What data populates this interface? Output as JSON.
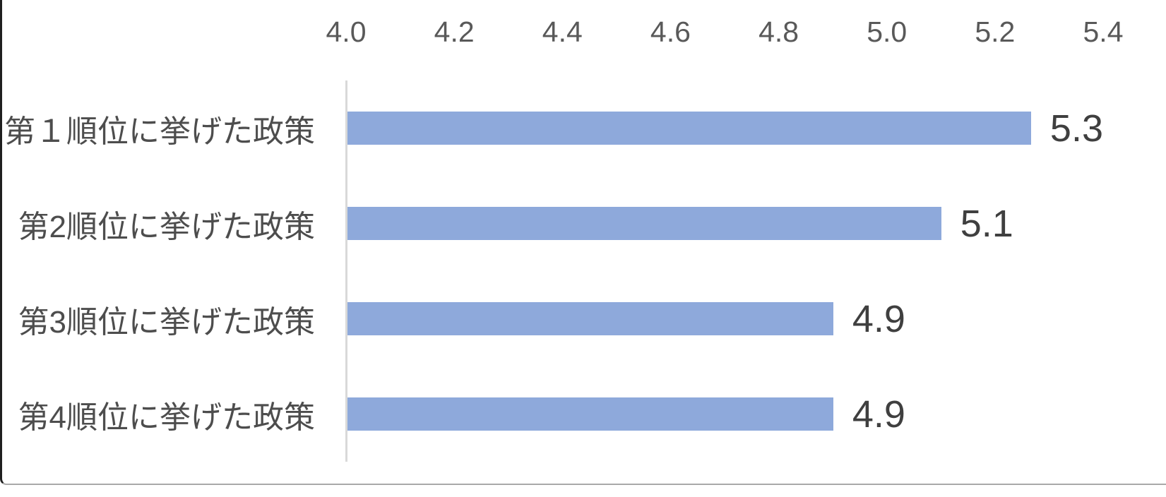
{
  "chart_data": {
    "type": "bar",
    "orientation": "horizontal",
    "title": "",
    "xlabel": "",
    "ylabel": "",
    "categories": [
      "第１順位に挙げた政策",
      "第2順位に挙げた政策",
      "第3順位に挙げた政策",
      "第4順位に挙げた政策"
    ],
    "values": [
      5.3,
      5.1,
      4.9,
      4.9
    ],
    "data_labels": [
      "5.3",
      "5.1",
      "4.9",
      "4.9"
    ],
    "xlim": [
      4.0,
      5.4
    ],
    "x_ticks": [
      "4.0",
      "4.2",
      "4.4",
      "4.6",
      "4.8",
      "5.0",
      "5.2",
      "5.4"
    ],
    "tick_step": 0.2,
    "x_axis_position": "top",
    "grid": false,
    "legend": false
  },
  "colors": {
    "bar_fill": "#8EA9DB",
    "tick_label": "#595959",
    "category_label": "#4D4D4D",
    "data_label": "#3F3F3F",
    "axis_line": "#D9D9D9",
    "frame_left": "#1F1F1F",
    "frame_bottom": "#A9A9A9"
  }
}
